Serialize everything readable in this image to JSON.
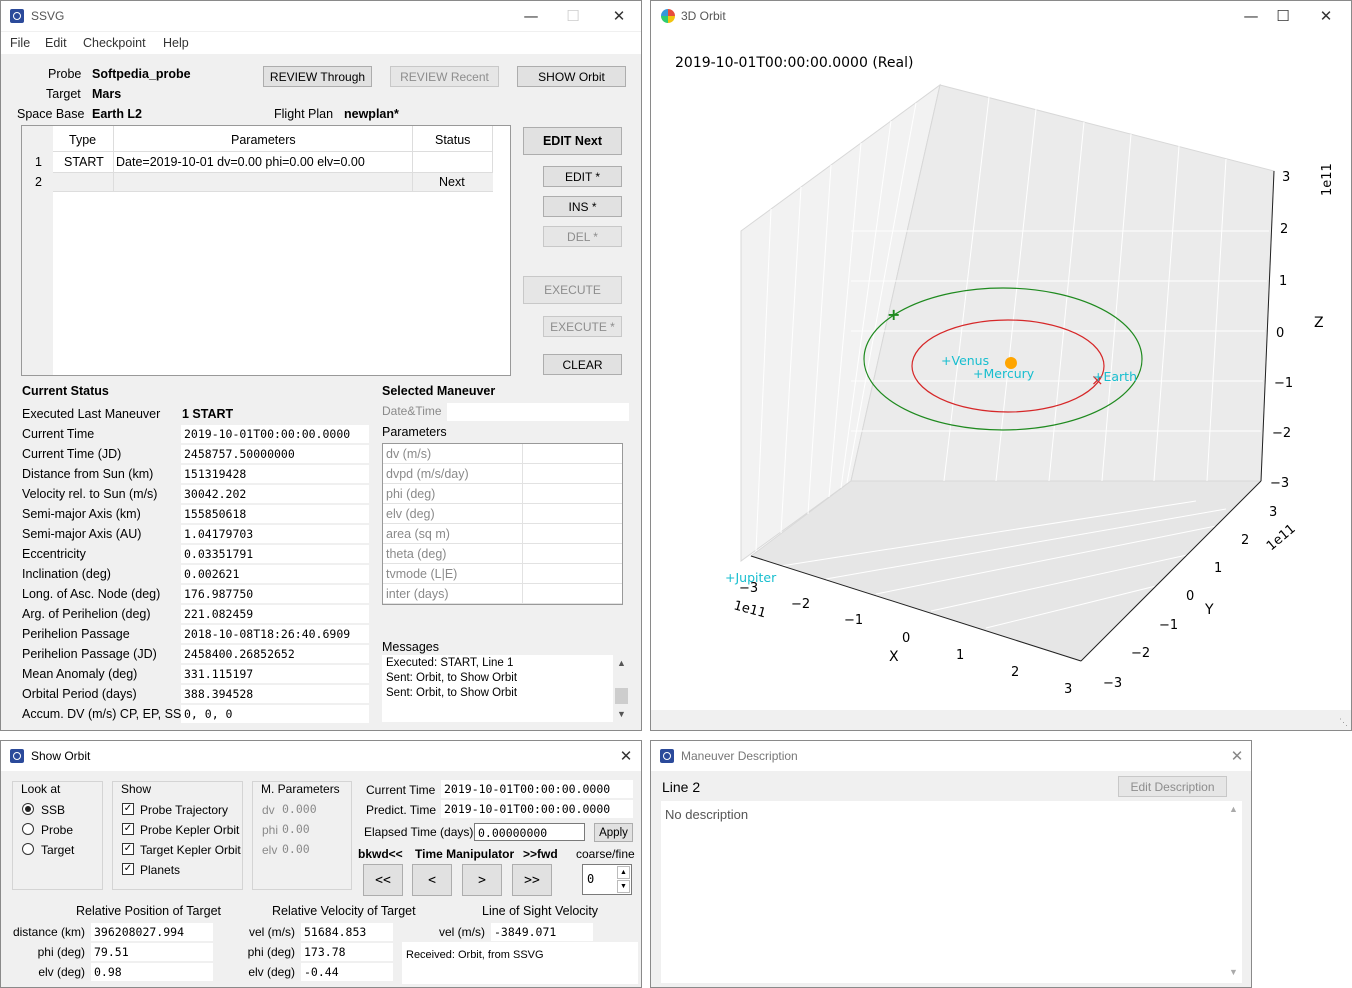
{
  "ssvg": {
    "title": "SSVG",
    "menu": [
      "File",
      "Edit",
      "Checkpoint",
      "Help"
    ],
    "probe_label": "Probe",
    "probe_value": "Softpedia_probe",
    "target_label": "Target",
    "target_value": "Mars",
    "spacebase_label": "Space Base",
    "spacebase_value": "Earth L2",
    "flightplan_label": "Flight Plan",
    "flightplan_value": "newplan*",
    "btn_review_through": "REVIEW Through",
    "btn_review_recent": "REVIEW Recent",
    "btn_show_orbit": "SHOW Orbit",
    "btn_edit_next": "EDIT Next",
    "btn_edit": "EDIT *",
    "btn_ins": "INS *",
    "btn_del": "DEL *",
    "btn_execute": "EXECUTE",
    "btn_execute_star": "EXECUTE *",
    "btn_clear": "CLEAR",
    "table": {
      "headers": [
        "Type",
        "Parameters",
        "Status"
      ],
      "rows": [
        {
          "num": "1",
          "type": "START",
          "params": "Date=2019-10-01 dv=0.00 phi=0.00 elv=0.00",
          "status": ""
        },
        {
          "num": "2",
          "type": "",
          "params": "",
          "status": "Next"
        }
      ]
    },
    "current_status_heading": "Current Status",
    "status": [
      {
        "label": "Executed Last Maneuver",
        "value": "1 START"
      },
      {
        "label": "Current Time",
        "value": "2019-10-01T00:00:00.0000"
      },
      {
        "label": "Current Time (JD)",
        "value": "2458757.50000000"
      },
      {
        "label": "Distance from Sun (km)",
        "value": "151319428"
      },
      {
        "label": "Velocity rel. to Sun (m/s)",
        "value": "30042.202"
      },
      {
        "label": "Semi-major Axis (km)",
        "value": "155850618"
      },
      {
        "label": "Semi-major Axis (AU)",
        "value": "1.04179703"
      },
      {
        "label": "Eccentricity",
        "value": "0.03351791"
      },
      {
        "label": "Inclination (deg)",
        "value": "0.002621"
      },
      {
        "label": "Long. of Asc. Node (deg)",
        "value": "176.987750"
      },
      {
        "label": "Arg. of Perihelion (deg)",
        "value": "221.082459"
      },
      {
        "label": "Perihelion Passage",
        "value": "2018-10-08T18:26:40.6909"
      },
      {
        "label": "Perihelion Passage (JD)",
        "value": "2458400.26852652"
      },
      {
        "label": "Mean Anomaly (deg)",
        "value": "331.115197"
      },
      {
        "label": "Orbital Period (days)",
        "value": "388.394528"
      },
      {
        "label": "Accum. DV (m/s) CP, EP, SS",
        "value": "0,  0,  0"
      }
    ],
    "selected_maneuver_heading": "Selected Maneuver",
    "datetime_label": "Date&Time",
    "parameters_label": "Parameters",
    "param_rows": [
      "dv (m/s)",
      "dvpd (m/s/day)",
      "phi (deg)",
      "elv (deg)",
      "area (sq m)",
      "theta (deg)",
      "tvmode (L|E)",
      "inter (days)"
    ],
    "messages_label": "Messages",
    "messages": [
      "Executed: START, Line 1",
      "Sent: Orbit, to Show Orbit",
      "Sent: Orbit, to Show Orbit"
    ]
  },
  "orbit3d": {
    "title": "3D Orbit",
    "timestamp": "2019-10-01T00:00:00.0000 (Real)",
    "z_label": "Z",
    "x_label": "X",
    "y_label": "Y",
    "z_exp": "1e11",
    "x_exp": "1e11",
    "y_exp": "1e11",
    "z_ticks": [
      "3",
      "2",
      "1",
      "0",
      "−1",
      "−2",
      "−3"
    ],
    "x_ticks": [
      "−3",
      "−2",
      "−1",
      "0",
      "1",
      "2",
      "3"
    ],
    "y_ticks": [
      "3",
      "2",
      "1",
      "0",
      "−1",
      "−2",
      "−3"
    ],
    "planets": [
      "Venus",
      "Mercury",
      "Earth",
      "Jupiter"
    ],
    "colors": {
      "probe_orbit": "#d62728",
      "target_orbit": "#1f8a1f",
      "planet": "#17becf",
      "sun": "#ffa500"
    }
  },
  "show_orbit": {
    "title": "Show Orbit",
    "look_at_label": "Look at",
    "look_at": [
      "SSB",
      "Probe",
      "Target"
    ],
    "show_label": "Show",
    "show": [
      "Probe Trajectory",
      "Probe Kepler Orbit",
      "Target Kepler Orbit",
      "Planets"
    ],
    "mparams_label": "M. Parameters",
    "mparams": [
      {
        "label": "dv",
        "value": "0.000"
      },
      {
        "label": "phi",
        "value": "0.00"
      },
      {
        "label": "elv",
        "value": "0.00"
      }
    ],
    "current_time_label": "Current Time",
    "current_time": "2019-10-01T00:00:00.0000",
    "predict_time_label": "Predict. Time",
    "predict_time": "2019-10-01T00:00:00.0000",
    "elapsed_label": "Elapsed Time (days)",
    "elapsed": "0.00000000",
    "apply": "Apply",
    "bkwd": "bkwd<<",
    "time_manip": "Time Manipulator",
    "fwd": ">>fwd",
    "coarse_fine": "coarse/fine",
    "spin_value": "0",
    "tm_buttons": [
      "<<",
      "<",
      ">",
      ">>"
    ],
    "rel_pos_heading": "Relative Position of Target",
    "rel_pos": [
      {
        "label": "distance (km)",
        "value": "396208027.994"
      },
      {
        "label": "phi (deg)",
        "value": "79.51"
      },
      {
        "label": "elv (deg)",
        "value": "0.98"
      }
    ],
    "rel_vel_heading": "Relative Velocity of Target",
    "rel_vel": [
      {
        "label": "vel (m/s)",
        "value": "51684.853"
      },
      {
        "label": "phi (deg)",
        "value": "173.78"
      },
      {
        "label": "elv (deg)",
        "value": "-0.44"
      }
    ],
    "los_heading": "Line of Sight Velocity",
    "los": [
      {
        "label": "vel (m/s)",
        "value": "-3849.071"
      }
    ],
    "message": "Received: Orbit, from SSVG"
  },
  "maneuver_desc": {
    "title": "Maneuver Description",
    "line": "Line 2",
    "edit_btn": "Edit Description",
    "text": "No description"
  }
}
